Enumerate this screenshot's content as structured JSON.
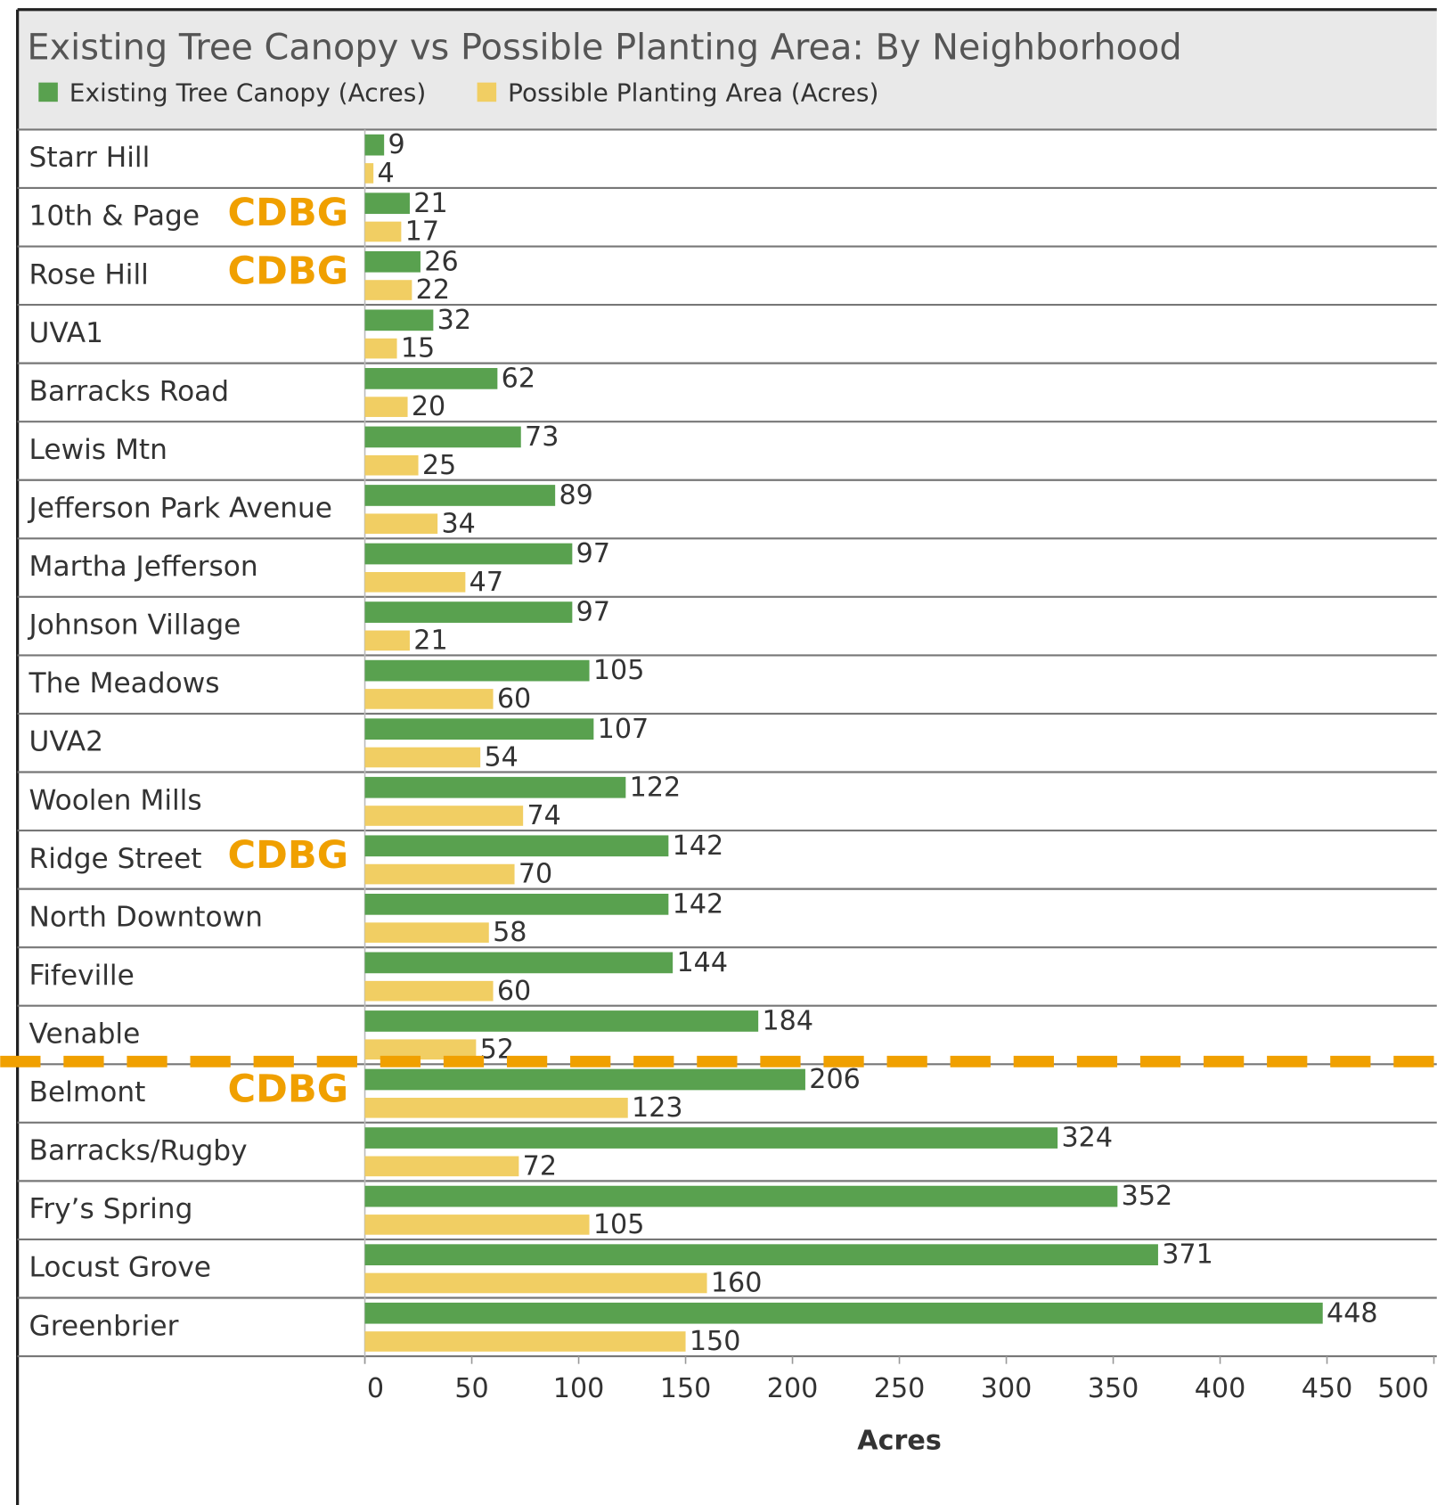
{
  "chart_data": {
    "type": "bar",
    "orientation": "horizontal",
    "title": "Existing Tree Canopy vs Possible Planting Area: By Neighborhood",
    "x_label": "Acres",
    "categories": [
      "Starr Hill",
      "10th & Page",
      "Rose Hill",
      "UVA1",
      "Barracks Road",
      "Lewis Mtn",
      "Jefferson Park Avenue",
      "Martha Jefferson",
      "Johnson Village",
      "The Meadows",
      "UVA2",
      "Woolen Mills",
      "Ridge Street",
      "North Downtown",
      "Fifeville",
      "Venable",
      "Belmont",
      "Barracks/Rugby",
      "Fry’s Spring",
      "Locust Grove",
      "Greenbrier"
    ],
    "series": [
      {
        "name": "Existing Tree Canopy (Acres)",
        "color": "#59a14f",
        "values": [
          9,
          21,
          26,
          32,
          62,
          73,
          89,
          97,
          97,
          105,
          107,
          122,
          142,
          142,
          144,
          184,
          206,
          324,
          352,
          371,
          448
        ]
      },
      {
        "name": "Possible Planting Area (Acres)",
        "color": "#f1ce63",
        "values": [
          4,
          17,
          22,
          15,
          20,
          25,
          34,
          47,
          21,
          60,
          54,
          74,
          70,
          58,
          60,
          52,
          123,
          72,
          105,
          160,
          150
        ]
      }
    ],
    "annotations": [
      {
        "text": "CDBG",
        "category": "10th & Page"
      },
      {
        "text": "CDBG",
        "category": "Rose Hill"
      },
      {
        "text": "CDBG",
        "category": "Ridge Street"
      },
      {
        "text": "CDBG",
        "category": "Belmont"
      }
    ],
    "annotation_color": "#f0a000",
    "xlim": [
      0,
      500
    ],
    "xticks": [
      0,
      50,
      100,
      150,
      200,
      250,
      300,
      350,
      400,
      450,
      500
    ]
  }
}
